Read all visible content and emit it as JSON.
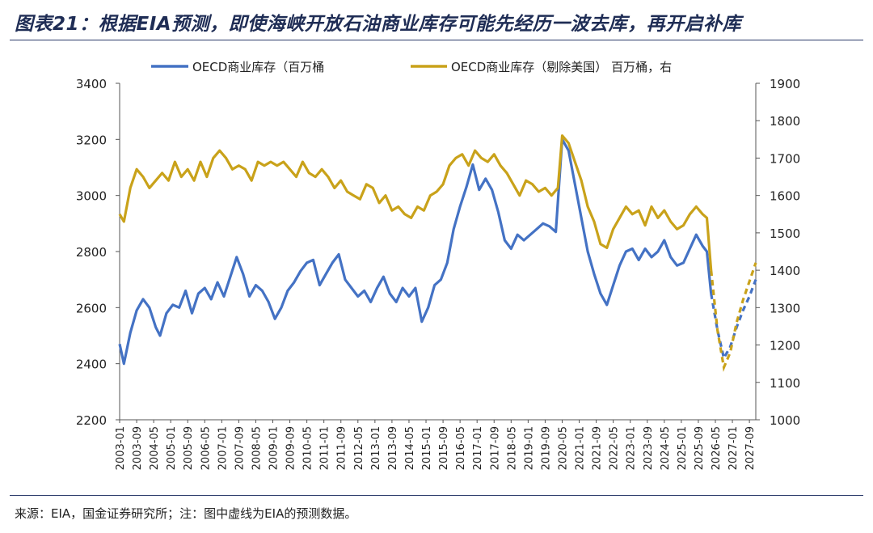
{
  "page": {
    "title": "图表21：根据EIA预测，即使海峡开放石油商业库存可能先经历一波去库，再开启补库",
    "source": "来源：EIA，国金证券研究所；注：图中虚线为EIA的预测数据。"
  },
  "colors": {
    "left_series": "#4472c4",
    "right_series": "#c9a21a",
    "rule": "#2a3a6a",
    "axis": "#555555"
  },
  "chart_data": {
    "type": "line",
    "legend": {
      "placement": "top",
      "entries": [
        "OECD商业库存（百万桶",
        "OECD商业库存（剔除美国） 百万桶，右"
      ]
    },
    "x_ticks": [
      "2003-01",
      "2003-09",
      "2004-05",
      "2005-01",
      "2005-09",
      "2006-05",
      "2007-01",
      "2007-09",
      "2008-05",
      "2009-01",
      "2009-09",
      "2010-05",
      "2011-01",
      "2011-09",
      "2012-05",
      "2013-01",
      "2013-09",
      "2014-05",
      "2015-01",
      "2015-09",
      "2016-05",
      "2017-01",
      "2017-09",
      "2018-05",
      "2019-01",
      "2019-09",
      "2020-05",
      "2021-01",
      "2021-09",
      "2022-05",
      "2023-01",
      "2023-09",
      "2024-05",
      "2025-01",
      "2025-09",
      "2026-05",
      "2027-01",
      "2027-09"
    ],
    "x_range": [
      "2003-01",
      "2027-12"
    ],
    "y_left": {
      "range": [
        2200,
        3400
      ],
      "ticks": [
        2200,
        2400,
        2600,
        2800,
        3000,
        3200,
        3400
      ]
    },
    "y_right": {
      "range": [
        1000,
        1900
      ],
      "ticks": [
        1000,
        1100,
        1200,
        1300,
        1400,
        1500,
        1600,
        1700,
        1800,
        1900
      ]
    },
    "grid": false,
    "series": [
      {
        "name": "OECD商业库存（百万桶",
        "axis": "left",
        "color": "#4472c4",
        "points": [
          [
            "2003-01",
            2470
          ],
          [
            "2003-03",
            2400
          ],
          [
            "2003-06",
            2510
          ],
          [
            "2003-09",
            2590
          ],
          [
            "2003-12",
            2630
          ],
          [
            "2004-03",
            2600
          ],
          [
            "2004-06",
            2530
          ],
          [
            "2004-08",
            2500
          ],
          [
            "2004-11",
            2580
          ],
          [
            "2005-02",
            2610
          ],
          [
            "2005-05",
            2600
          ],
          [
            "2005-08",
            2660
          ],
          [
            "2005-11",
            2580
          ],
          [
            "2006-02",
            2650
          ],
          [
            "2006-05",
            2670
          ],
          [
            "2006-08",
            2630
          ],
          [
            "2006-11",
            2690
          ],
          [
            "2007-02",
            2640
          ],
          [
            "2007-05",
            2710
          ],
          [
            "2007-08",
            2780
          ],
          [
            "2007-11",
            2720
          ],
          [
            "2008-02",
            2640
          ],
          [
            "2008-05",
            2680
          ],
          [
            "2008-08",
            2660
          ],
          [
            "2008-11",
            2620
          ],
          [
            "2009-02",
            2560
          ],
          [
            "2009-05",
            2600
          ],
          [
            "2009-08",
            2660
          ],
          [
            "2009-11",
            2690
          ],
          [
            "2010-02",
            2730
          ],
          [
            "2010-05",
            2760
          ],
          [
            "2010-08",
            2770
          ],
          [
            "2010-11",
            2680
          ],
          [
            "2011-02",
            2720
          ],
          [
            "2011-05",
            2760
          ],
          [
            "2011-08",
            2790
          ],
          [
            "2011-11",
            2700
          ],
          [
            "2012-02",
            2670
          ],
          [
            "2012-05",
            2640
          ],
          [
            "2012-08",
            2660
          ],
          [
            "2012-11",
            2620
          ],
          [
            "2013-02",
            2670
          ],
          [
            "2013-05",
            2710
          ],
          [
            "2013-08",
            2650
          ],
          [
            "2013-11",
            2620
          ],
          [
            "2014-02",
            2670
          ],
          [
            "2014-05",
            2640
          ],
          [
            "2014-08",
            2670
          ],
          [
            "2014-11",
            2550
          ],
          [
            "2015-02",
            2600
          ],
          [
            "2015-05",
            2680
          ],
          [
            "2015-08",
            2700
          ],
          [
            "2015-11",
            2760
          ],
          [
            "2016-02",
            2880
          ],
          [
            "2016-05",
            2960
          ],
          [
            "2016-08",
            3030
          ],
          [
            "2016-11",
            3110
          ],
          [
            "2017-02",
            3020
          ],
          [
            "2017-05",
            3060
          ],
          [
            "2017-08",
            3020
          ],
          [
            "2017-11",
            2940
          ],
          [
            "2018-02",
            2840
          ],
          [
            "2018-05",
            2810
          ],
          [
            "2018-08",
            2860
          ],
          [
            "2018-11",
            2840
          ],
          [
            "2019-02",
            2860
          ],
          [
            "2019-05",
            2880
          ],
          [
            "2019-08",
            2900
          ],
          [
            "2019-11",
            2890
          ],
          [
            "2020-02",
            2870
          ],
          [
            "2020-05",
            3200
          ],
          [
            "2020-08",
            3160
          ],
          [
            "2020-11",
            3040
          ],
          [
            "2021-02",
            2920
          ],
          [
            "2021-05",
            2800
          ],
          [
            "2021-08",
            2720
          ],
          [
            "2021-11",
            2650
          ],
          [
            "2022-02",
            2610
          ],
          [
            "2022-05",
            2680
          ],
          [
            "2022-08",
            2750
          ],
          [
            "2022-11",
            2800
          ],
          [
            "2023-02",
            2810
          ],
          [
            "2023-05",
            2770
          ],
          [
            "2023-08",
            2810
          ],
          [
            "2023-11",
            2780
          ],
          [
            "2024-02",
            2800
          ],
          [
            "2024-05",
            2840
          ],
          [
            "2024-08",
            2780
          ],
          [
            "2024-11",
            2750
          ],
          [
            "2025-02",
            2760
          ],
          [
            "2025-05",
            2810
          ],
          [
            "2025-08",
            2860
          ],
          [
            "2025-11",
            2820
          ],
          [
            "2026-01",
            2800
          ],
          [
            "2026-03",
            2650
          ]
        ],
        "forecast": [
          [
            "2026-03",
            2650
          ],
          [
            "2026-06",
            2520
          ],
          [
            "2026-09",
            2420
          ],
          [
            "2026-12",
            2460
          ],
          [
            "2027-03",
            2530
          ],
          [
            "2027-06",
            2590
          ],
          [
            "2027-09",
            2640
          ],
          [
            "2027-12",
            2700
          ]
        ]
      },
      {
        "name": "OECD商业库存（剔除美国） 百万桶，右",
        "axis": "right",
        "color": "#c9a21a",
        "points": [
          [
            "2003-01",
            1550
          ],
          [
            "2003-03",
            1530
          ],
          [
            "2003-06",
            1620
          ],
          [
            "2003-09",
            1670
          ],
          [
            "2003-12",
            1650
          ],
          [
            "2004-03",
            1620
          ],
          [
            "2004-06",
            1640
          ],
          [
            "2004-09",
            1660
          ],
          [
            "2004-12",
            1640
          ],
          [
            "2005-03",
            1690
          ],
          [
            "2005-06",
            1650
          ],
          [
            "2005-09",
            1670
          ],
          [
            "2005-12",
            1640
          ],
          [
            "2006-03",
            1690
          ],
          [
            "2006-06",
            1650
          ],
          [
            "2006-09",
            1700
          ],
          [
            "2006-12",
            1720
          ],
          [
            "2007-03",
            1700
          ],
          [
            "2007-06",
            1670
          ],
          [
            "2007-09",
            1680
          ],
          [
            "2007-12",
            1670
          ],
          [
            "2008-03",
            1640
          ],
          [
            "2008-06",
            1690
          ],
          [
            "2008-09",
            1680
          ],
          [
            "2008-12",
            1690
          ],
          [
            "2009-03",
            1680
          ],
          [
            "2009-06",
            1690
          ],
          [
            "2009-09",
            1670
          ],
          [
            "2009-12",
            1650
          ],
          [
            "2010-03",
            1690
          ],
          [
            "2010-06",
            1660
          ],
          [
            "2010-09",
            1650
          ],
          [
            "2010-12",
            1670
          ],
          [
            "2011-03",
            1650
          ],
          [
            "2011-06",
            1620
          ],
          [
            "2011-09",
            1640
          ],
          [
            "2011-12",
            1610
          ],
          [
            "2012-03",
            1600
          ],
          [
            "2012-06",
            1590
          ],
          [
            "2012-09",
            1630
          ],
          [
            "2012-12",
            1620
          ],
          [
            "2013-03",
            1580
          ],
          [
            "2013-06",
            1600
          ],
          [
            "2013-09",
            1560
          ],
          [
            "2013-12",
            1570
          ],
          [
            "2014-03",
            1550
          ],
          [
            "2014-06",
            1540
          ],
          [
            "2014-09",
            1570
          ],
          [
            "2014-12",
            1560
          ],
          [
            "2015-03",
            1600
          ],
          [
            "2015-06",
            1610
          ],
          [
            "2015-09",
            1630
          ],
          [
            "2015-12",
            1680
          ],
          [
            "2016-03",
            1700
          ],
          [
            "2016-06",
            1710
          ],
          [
            "2016-09",
            1680
          ],
          [
            "2016-12",
            1720
          ],
          [
            "2017-03",
            1700
          ],
          [
            "2017-06",
            1690
          ],
          [
            "2017-09",
            1710
          ],
          [
            "2017-12",
            1680
          ],
          [
            "2018-03",
            1660
          ],
          [
            "2018-06",
            1630
          ],
          [
            "2018-09",
            1600
          ],
          [
            "2018-12",
            1640
          ],
          [
            "2019-03",
            1630
          ],
          [
            "2019-06",
            1610
          ],
          [
            "2019-09",
            1620
          ],
          [
            "2019-12",
            1600
          ],
          [
            "2020-03",
            1620
          ],
          [
            "2020-05",
            1760
          ],
          [
            "2020-08",
            1740
          ],
          [
            "2020-11",
            1690
          ],
          [
            "2021-02",
            1640
          ],
          [
            "2021-05",
            1570
          ],
          [
            "2021-08",
            1530
          ],
          [
            "2021-11",
            1470
          ],
          [
            "2022-02",
            1460
          ],
          [
            "2022-05",
            1510
          ],
          [
            "2022-08",
            1540
          ],
          [
            "2022-11",
            1570
          ],
          [
            "2023-02",
            1550
          ],
          [
            "2023-05",
            1560
          ],
          [
            "2023-08",
            1520
          ],
          [
            "2023-11",
            1570
          ],
          [
            "2024-02",
            1540
          ],
          [
            "2024-05",
            1560
          ],
          [
            "2024-08",
            1530
          ],
          [
            "2024-11",
            1510
          ],
          [
            "2025-02",
            1520
          ],
          [
            "2025-05",
            1550
          ],
          [
            "2025-08",
            1570
          ],
          [
            "2025-11",
            1550
          ],
          [
            "2026-01",
            1540
          ],
          [
            "2026-03",
            1400
          ]
        ],
        "forecast": [
          [
            "2026-03",
            1400
          ],
          [
            "2026-06",
            1240
          ],
          [
            "2026-09",
            1140
          ],
          [
            "2026-12",
            1180
          ],
          [
            "2027-03",
            1260
          ],
          [
            "2027-06",
            1320
          ],
          [
            "2027-09",
            1370
          ],
          [
            "2027-12",
            1420
          ]
        ]
      }
    ]
  }
}
